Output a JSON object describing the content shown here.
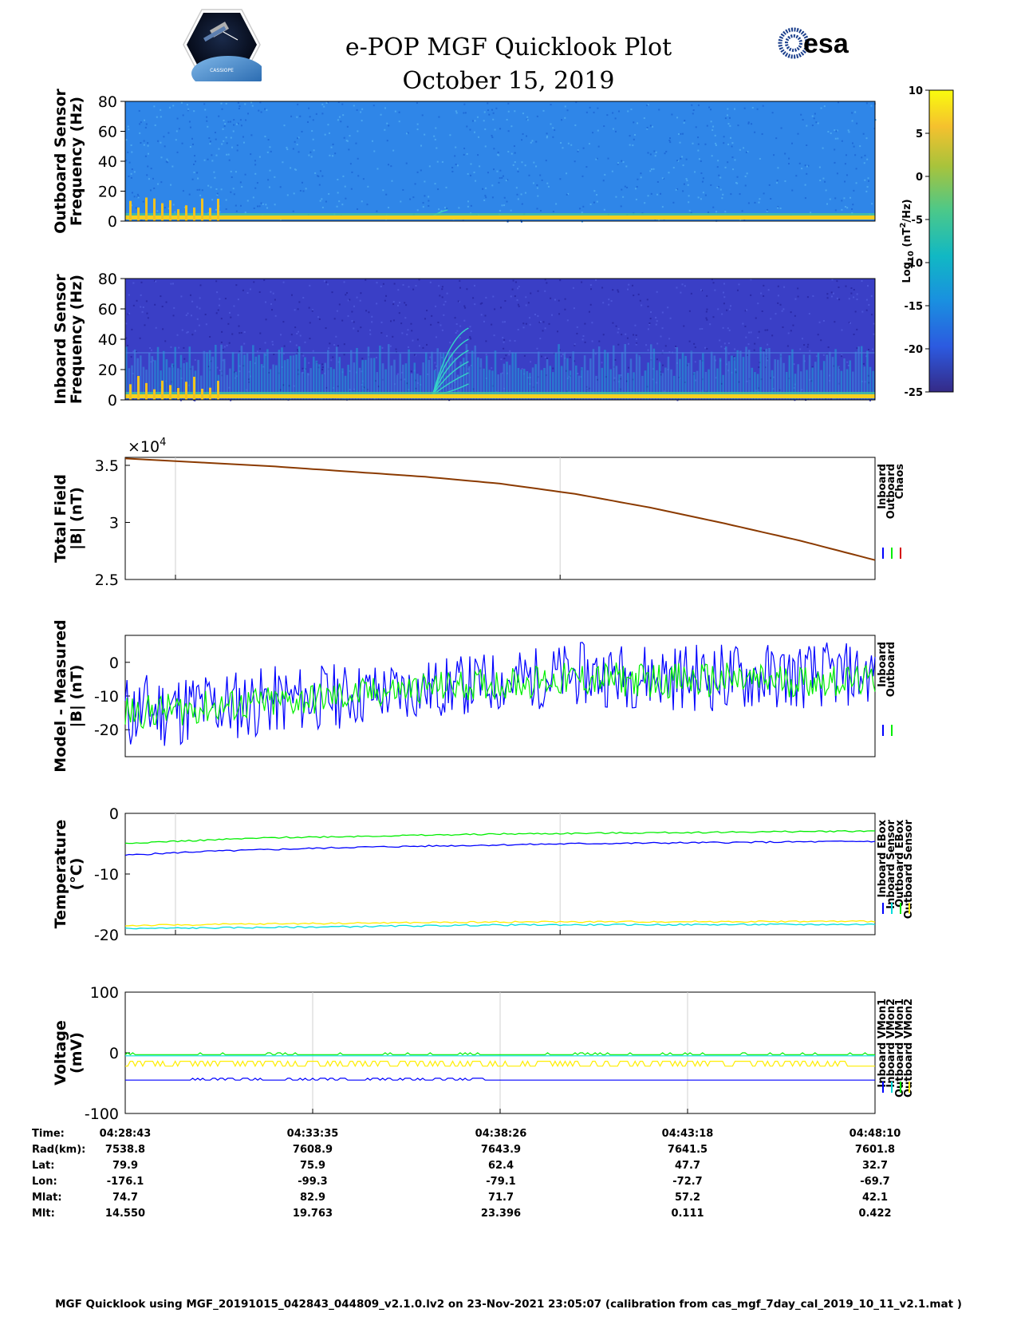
{
  "title": "e-POP MGF Quicklook Plot",
  "date": "October 15, 2019",
  "logos": {
    "left_text": "CASSIOPE",
    "right_text": "esa"
  },
  "colors": {
    "inboard": "#0000ff",
    "outboard": "#00ee00",
    "chaos": "#d40000",
    "chaos_line": "#8b3a00",
    "yellow": "#ffee00",
    "cyan": "#00dddd"
  },
  "chart_data": [
    {
      "type": "heatmap",
      "ylabel": [
        "Outboard Sensor",
        "Frequency (Hz)"
      ],
      "yticks": [
        0,
        20,
        40,
        60,
        80
      ],
      "ylim": [
        0,
        80
      ],
      "grid": false
    },
    {
      "type": "heatmap",
      "ylabel": [
        "Inboard Sensor",
        "Frequency (Hz)"
      ],
      "yticks": [
        0,
        20,
        40,
        60,
        80
      ],
      "ylim": [
        0,
        80
      ],
      "grid": false
    },
    {
      "type": "colorbar",
      "label_main": "Log",
      "label_sub": "10",
      "label_units_a": " (nT",
      "label_units_sup": "2",
      "label_units_b": "/Hz)",
      "ticks": [
        "10",
        "5",
        "0",
        "-5",
        "-10",
        "-15",
        "-20",
        "-25"
      ],
      "range": [
        -25,
        10
      ]
    },
    {
      "type": "line",
      "ylabel": [
        "Total Field",
        "|B| (nT)"
      ],
      "multiplier": "×10",
      "multiplier_exp": "4",
      "yticks": [
        "3.5",
        "3",
        "2.5"
      ],
      "ylim": [
        2.5,
        3.57
      ],
      "legend": [
        "Inboard",
        "Outboard",
        "Chaos"
      ],
      "series": [
        {
          "name": "Chaos",
          "x": [
            0,
            0.2,
            0.4,
            0.5,
            0.6,
            0.7,
            0.8,
            0.9,
            1.0
          ],
          "y": [
            3.56,
            3.49,
            3.4,
            3.34,
            3.25,
            3.13,
            2.99,
            2.84,
            2.67
          ]
        }
      ]
    },
    {
      "type": "line",
      "ylabel": [
        "Model - Measured",
        "|B| (nT)"
      ],
      "yticks": [
        "0",
        "-10",
        "-20"
      ],
      "ylim": [
        -28,
        8
      ],
      "legend": [
        "Inboard",
        "Outboard"
      ],
      "series": [
        {
          "name": "Inboard",
          "x": [
            0,
            0.2,
            0.4,
            0.6,
            0.8,
            1.0
          ],
          "upper": [
            -3,
            -1,
            1,
            6,
            6,
            6
          ],
          "lower": [
            -27,
            -22,
            -17,
            -13,
            -15,
            -13
          ]
        },
        {
          "name": "Outboard",
          "x": [
            0,
            0.2,
            0.4,
            0.6,
            0.8,
            1.0
          ],
          "upper": [
            -10,
            -7,
            -3,
            0,
            0,
            -1
          ],
          "lower": [
            -20,
            -17,
            -12,
            -10,
            -11,
            -10
          ]
        }
      ]
    },
    {
      "type": "line",
      "ylabel": [
        "Temperature",
        "(°C)"
      ],
      "yticks": [
        "0",
        "-10",
        "-20"
      ],
      "ylim": [
        -20,
        0
      ],
      "legend": [
        "Inboard EBox",
        "Inboard Sensor",
        "Outboard EBox",
        "Outboard Sensor"
      ],
      "series": [
        {
          "name": "Inboard EBox",
          "x": [
            0,
            0.1,
            0.3,
            0.6,
            1.0
          ],
          "y": [
            -6.9,
            -6.3,
            -5.6,
            -5.0,
            -4.6
          ]
        },
        {
          "name": "Inboard Sensor",
          "x": [
            0,
            0.2,
            0.5,
            1.0
          ],
          "y": [
            -19.0,
            -18.8,
            -18.4,
            -18.3
          ]
        },
        {
          "name": "Outboard EBox",
          "x": [
            0,
            0.2,
            0.5,
            1.0
          ],
          "y": [
            -4.9,
            -4.0,
            -3.4,
            -2.9
          ]
        },
        {
          "name": "Outboard Sensor",
          "x": [
            0,
            0.2,
            0.5,
            1.0
          ],
          "y": [
            -18.5,
            -18.2,
            -17.9,
            -17.8
          ]
        }
      ]
    },
    {
      "type": "line",
      "ylabel": [
        "Voltage",
        "(mV)"
      ],
      "yticks": [
        "100",
        "0",
        "-100"
      ],
      "ylim": [
        -100,
        100
      ],
      "legend": [
        "Inboard VMon1",
        "Inboard VMon2",
        "Outboard VMon1",
        "Outboard VMon2"
      ],
      "series": [
        {
          "name": "Inboard VMon1",
          "x": [
            0,
            1
          ],
          "y": [
            -45,
            -45
          ]
        },
        {
          "name": "Inboard VMon2",
          "x": [
            0,
            1
          ],
          "y": [
            -5,
            -5
          ]
        },
        {
          "name": "Outboard VMon1",
          "x": [
            0,
            1
          ],
          "y": [
            -3,
            -3
          ]
        },
        {
          "name": "Outboard VMon2",
          "x": [
            0,
            1
          ],
          "y": [
            -22,
            -22
          ]
        }
      ]
    }
  ],
  "orbit_table": {
    "row_labels": [
      "Time:",
      "Rad(km):",
      "Lat:",
      "Lon:",
      "Mlat:",
      "Mlt:"
    ],
    "columns": [
      [
        "04:28:43",
        "7538.8",
        "79.9",
        "-176.1",
        "74.7",
        "14.550"
      ],
      [
        "04:33:35",
        "7608.9",
        "75.9",
        "-99.3",
        "82.9",
        "19.763"
      ],
      [
        "04:38:26",
        "7643.9",
        "62.4",
        "-79.1",
        "71.7",
        "23.396"
      ],
      [
        "04:43:18",
        "7641.5",
        "47.7",
        "-72.7",
        "57.2",
        "0.111"
      ],
      [
        "04:48:10",
        "7601.8",
        "32.7",
        "-69.7",
        "42.1",
        "0.422"
      ]
    ]
  },
  "footer": "MGF Quicklook using MGF_20191015_042843_044809_v2.1.0.lv2 on 23-Nov-2021 23:05:07 (calibration from cas_mgf_7day_cal_2019_10_11_v2.1.mat )"
}
